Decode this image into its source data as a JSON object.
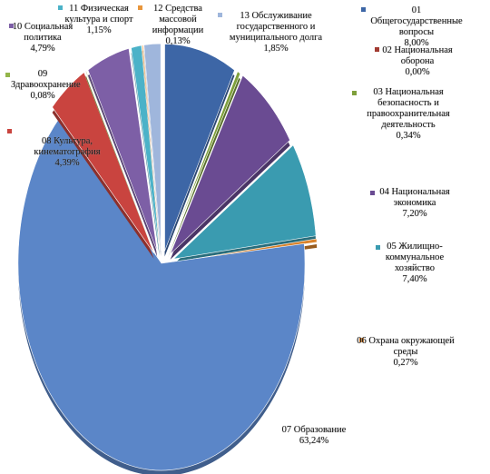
{
  "chart_data": {
    "type": "pie",
    "title": "",
    "series": [
      {
        "name": "01 Общегосударственные вопросы",
        "value": 8.0,
        "label": "8,00%",
        "color": "#3d66a6"
      },
      {
        "name": "02 Национальная оборона",
        "value": 0.0,
        "label": "0,00%",
        "color": "#a23b32"
      },
      {
        "name": "03 Национальная безопасность и правоохранительная деятельность",
        "value": 0.34,
        "label": "0,34%",
        "color": "#7fa03c"
      },
      {
        "name": "04 Национальная экономика",
        "value": 7.2,
        "label": "7,20%",
        "color": "#6a4b92"
      },
      {
        "name": "05 Жилищно-коммунальное хозяйство",
        "value": 7.4,
        "label": "7,40%",
        "color": "#3a9bb0"
      },
      {
        "name": "06 Охрана окружающей среды",
        "value": 0.27,
        "label": "0,27%",
        "color": "#d9822b"
      },
      {
        "name": "07 Образование",
        "value": 63.24,
        "label": "63,24%",
        "color": "#5b86c8"
      },
      {
        "name": "08 Культура, кинематография",
        "value": 4.39,
        "label": "4,39%",
        "color": "#c9443f"
      },
      {
        "name": "09 Здравоохранение",
        "value": 0.08,
        "label": "0,08%",
        "color": "#93b54a"
      },
      {
        "name": "10 Социальная политика",
        "value": 4.79,
        "label": "4,79%",
        "color": "#7d5fa6"
      },
      {
        "name": "11 Физическая культура и спорт",
        "value": 1.15,
        "label": "1,15%",
        "color": "#4bb2c8"
      },
      {
        "name": "12 Средства массовой информации",
        "value": 0.13,
        "label": "0,13%",
        "color": "#e8963c"
      },
      {
        "name": "13 Обслуживание государственного и муниципального долга",
        "value": 1.85,
        "label": "1,85%",
        "color": "#9fb6dc"
      }
    ],
    "legend": "none"
  },
  "labels": [
    {
      "name": "01 Общегосударственные вопросы",
      "pct": "8,00%",
      "color": "#3d66a6"
    },
    {
      "name": "02 Национальная оборона",
      "pct": "0,00%",
      "color": "#a23b32"
    },
    {
      "name": "03 Национальная безопасность и правоохранительная деятельность",
      "pct": "0,34%",
      "color": "#7fa03c"
    },
    {
      "name": "04 Национальная экономика",
      "pct": "7,20%",
      "color": "#6a4b92"
    },
    {
      "name": "05 Жилищно-коммунальное хозяйство",
      "pct": "7,40%",
      "color": "#3a9bb0"
    },
    {
      "name": "06 Охрана окружающей среды",
      "pct": "0,27%",
      "color": "#d9822b"
    },
    {
      "name": "07 Образование",
      "pct": "63,24%",
      "color": "#5b86c8"
    },
    {
      "name": "08 Культура, кинематография",
      "pct": "4,39%",
      "color": "#c9443f"
    },
    {
      "name": "09 Здравоохранение",
      "pct": "0,08%",
      "color": "#93b54a"
    },
    {
      "name": "10 Социальная политика",
      "pct": "4,79%",
      "color": "#7d5fa6"
    },
    {
      "name": "11 Физическая культура и спорт",
      "pct": "1,15%",
      "color": "#4bb2c8"
    },
    {
      "name": "12 Средства массовой информации",
      "pct": "0,13%",
      "color": "#e8963c"
    },
    {
      "name": "13 Обслуживание государственного и муниципального долга",
      "pct": "1,85%",
      "color": "#9fb6dc"
    }
  ]
}
